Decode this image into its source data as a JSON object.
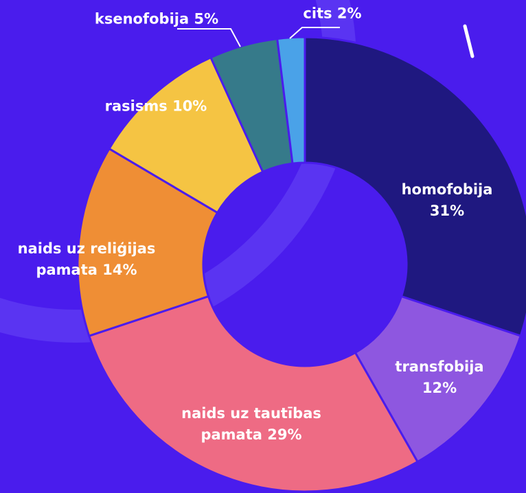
{
  "chart_data": {
    "type": "donut",
    "categories": [
      "homofobija",
      "transfobija",
      "naids uz tautības pamata",
      "naids uz reliģijas pamata",
      "rasisms",
      "ksenofobija",
      "cits"
    ],
    "values": [
      31,
      12,
      29,
      14,
      10,
      5,
      2
    ],
    "value_labels": [
      "31%",
      "12%",
      "29%",
      "14%",
      "10%",
      "5%",
      "2%"
    ],
    "colors": [
      "#1f1880",
      "#8e57e0",
      "#ee6b84",
      "#ef8e35",
      "#f5c443",
      "#367a8a",
      "#4aa2e8"
    ]
  }
}
